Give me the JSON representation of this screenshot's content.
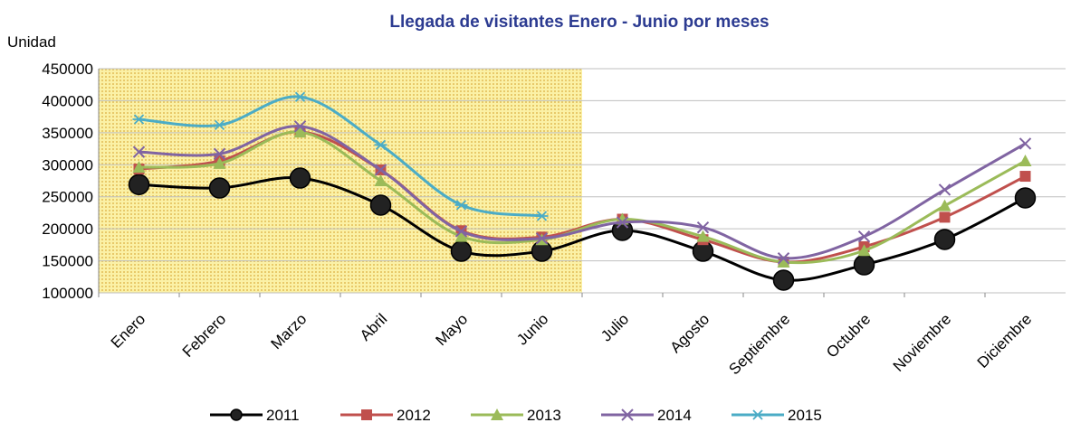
{
  "chart_data": {
    "type": "line",
    "title": "Llegada de visitantes Enero - Junio por meses",
    "y_label": "Unidad",
    "categories": [
      "Enero",
      "Febrero",
      "Marzo",
      "Abril",
      "Mayo",
      "Junio",
      "Julio",
      "Agosto",
      "Septiembre",
      "Octubre",
      "Noviembre",
      "Diciembre"
    ],
    "series": [
      {
        "name": "2011",
        "color": "#000000",
        "marker": "circle",
        "values": [
          269000,
          263700,
          279200,
          236900,
          164900,
          164900,
          197400,
          164900,
          119800,
          143700,
          183300,
          248200
        ]
      },
      {
        "name": "2012",
        "color": "#c0504d",
        "marker": "square",
        "values": [
          293300,
          306000,
          351200,
          291900,
          197000,
          187000,
          215000,
          183000,
          148000,
          172000,
          218000,
          282000
        ]
      },
      {
        "name": "2013",
        "color": "#9bbb59",
        "marker": "triangle",
        "values": [
          296000,
          302000,
          351000,
          275000,
          188000,
          183000,
          215000,
          188000,
          148000,
          166000,
          236000,
          306000
        ]
      },
      {
        "name": "2014",
        "color": "#8064a2",
        "marker": "x",
        "values": [
          320000,
          317000,
          360000,
          292000,
          196000,
          185000,
          210000,
          202000,
          154000,
          188000,
          261000,
          333000
        ]
      },
      {
        "name": "2015",
        "color": "#4bacc6",
        "marker": "star",
        "values": [
          371000,
          362000,
          406000,
          331000,
          237000,
          220000,
          null,
          null,
          null,
          null,
          null,
          null
        ]
      }
    ],
    "ylim": [
      100000,
      450000
    ],
    "yticks": [
      100000,
      150000,
      200000,
      250000,
      300000,
      350000,
      400000,
      450000
    ],
    "grid": true
  }
}
